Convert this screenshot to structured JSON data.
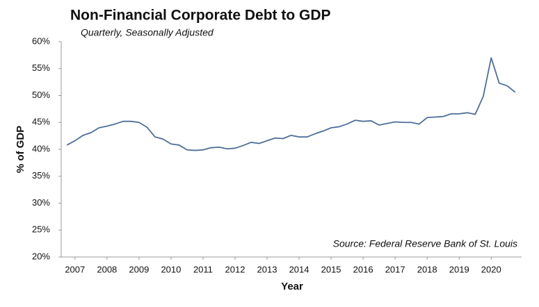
{
  "chart_data": {
    "type": "line",
    "title": "Non-Financial Corporate Debt to GDP",
    "subtitle": "Quarterly, Seasonally Adjusted",
    "y_label": "% of GDP",
    "x_label": "Year",
    "annotation": "Source: Federal Reserve Bank of St. Louis",
    "x": [
      2006.75,
      2007,
      2007.25,
      2007.5,
      2007.75,
      2008,
      2008.25,
      2008.5,
      2008.75,
      2009,
      2009.25,
      2009.5,
      2009.75,
      2010,
      2010.25,
      2010.5,
      2010.75,
      2011,
      2011.25,
      2011.5,
      2011.75,
      2012,
      2012.25,
      2012.5,
      2012.75,
      2013,
      2013.25,
      2013.5,
      2013.75,
      2014,
      2014.25,
      2014.5,
      2014.75,
      2015,
      2015.25,
      2015.5,
      2015.75,
      2016,
      2016.25,
      2016.5,
      2016.75,
      2017,
      2017.25,
      2017.5,
      2017.75,
      2018,
      2018.25,
      2018.5,
      2018.75,
      2019,
      2019.25,
      2019.5,
      2019.75,
      2020,
      2020.25,
      2020.5,
      2020.75
    ],
    "series": [
      {
        "name": "Non-Financial Corporate Debt to GDP",
        "color": "#4d6d9a",
        "values": [
          40.8,
          41.6,
          42.6,
          43.1,
          44.0,
          44.3,
          44.7,
          45.2,
          45.2,
          45.0,
          44.1,
          42.3,
          41.9,
          41.0,
          40.8,
          39.9,
          39.8,
          39.9,
          40.3,
          40.4,
          40.1,
          40.2,
          40.7,
          41.3,
          41.1,
          41.6,
          42.1,
          42.0,
          42.6,
          42.3,
          42.3,
          42.9,
          43.4,
          44.0,
          44.2,
          44.7,
          45.4,
          45.2,
          45.3,
          44.5,
          44.8,
          45.1,
          45.0,
          45.0,
          44.7,
          45.9,
          46.0,
          46.1,
          46.6,
          46.6,
          46.8,
          46.5,
          49.8,
          57.0,
          52.3,
          51.8,
          50.6
        ]
      }
    ],
    "xlim": [
      2006.57,
      2020.95
    ],
    "xticks": [
      2007,
      2008,
      2009,
      2010,
      2011,
      2012,
      2013,
      2014,
      2015,
      2016,
      2017,
      2018,
      2019,
      2020
    ],
    "ylim": [
      20,
      60
    ],
    "yticks": [
      {
        "value": 20,
        "label": "20%"
      },
      {
        "value": 25,
        "label": "25%"
      },
      {
        "value": 30,
        "label": "30%"
      },
      {
        "value": 35,
        "label": "35%"
      },
      {
        "value": 40,
        "label": "40%"
      },
      {
        "value": 45,
        "label": "45%"
      },
      {
        "value": 50,
        "label": "50%"
      },
      {
        "value": 55,
        "label": "55%"
      },
      {
        "value": 60,
        "label": "60%"
      }
    ],
    "grid": false
  }
}
